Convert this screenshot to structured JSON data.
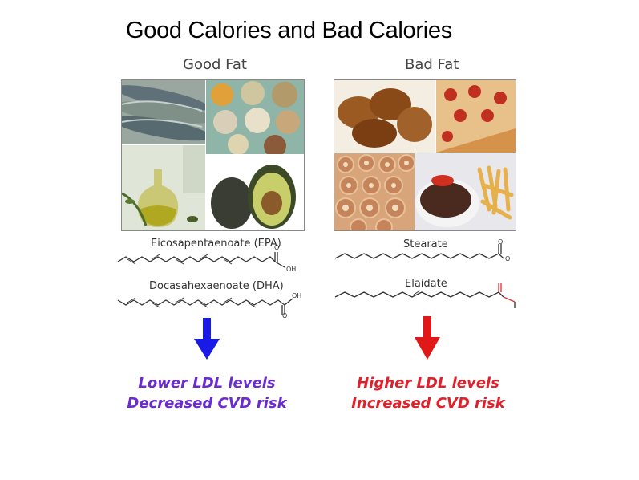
{
  "title": "Good Calories and Bad Calories",
  "good": {
    "heading": "Good Fat",
    "molecule1": "Eicosapentaenoate (EPA)",
    "molecule2": "Docasahexaenoate (DHA)",
    "atom_o": "O",
    "atom_oh": "OH",
    "outcome_line1": "Lower LDL levels",
    "outcome_line2": "Decreased CVD risk",
    "arrow_color": "#1a1ae6",
    "text_color": "#6a2bd0"
  },
  "bad": {
    "heading": "Bad Fat",
    "molecule1": "Stearate",
    "molecule2": "Elaidate",
    "atom_o": "O",
    "atom_o_minus": "O",
    "outcome_line1": "Higher LDL levels",
    "outcome_line2": "Increased CVD risk",
    "arrow_color": "#e01818",
    "text_color": "#e0202a"
  }
}
